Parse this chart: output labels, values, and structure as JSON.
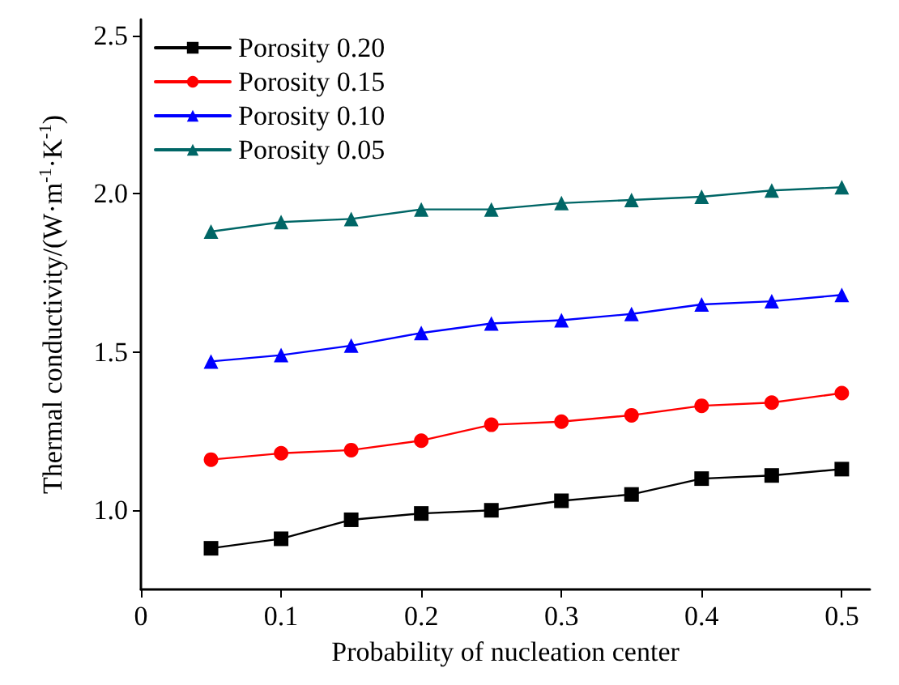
{
  "chart_data": {
    "type": "line",
    "xlabel": "Probability of nucleation center",
    "ylabel": "Thermal conductivity/(W·m$^{-1}$·K$^{-1}$)",
    "x": [
      0.05,
      0.1,
      0.15,
      0.2,
      0.25,
      0.3,
      0.35,
      0.4,
      0.45,
      0.5
    ],
    "series": [
      {
        "name": "Porosity 0.20",
        "color": "#000000",
        "marker": "square",
        "values": [
          0.88,
          0.91,
          0.97,
          0.99,
          1.0,
          1.03,
          1.05,
          1.1,
          1.11,
          1.13
        ]
      },
      {
        "name": "Porosity 0.15",
        "color": "#ff0000",
        "marker": "circle",
        "values": [
          1.16,
          1.18,
          1.19,
          1.22,
          1.27,
          1.28,
          1.3,
          1.33,
          1.34,
          1.37
        ]
      },
      {
        "name": "Porosity 0.10",
        "color": "#0000ff",
        "marker": "triangle",
        "values": [
          1.47,
          1.49,
          1.52,
          1.56,
          1.59,
          1.6,
          1.62,
          1.65,
          1.66,
          1.68
        ]
      },
      {
        "name": "Porosity 0.05",
        "color": "#006666",
        "marker": "triangle",
        "values": [
          1.88,
          1.91,
          1.92,
          1.95,
          1.95,
          1.97,
          1.98,
          1.99,
          2.01,
          2.02
        ]
      }
    ],
    "xlim": [
      0,
      0.52
    ],
    "xticks": [
      0,
      0.1,
      0.2,
      0.3,
      0.4,
      0.5
    ],
    "ylim": [
      0.75,
      2.55
    ],
    "yticks": [
      {
        "value": 1.0,
        "label": "1.0"
      },
      {
        "value": 1.5,
        "label": "1.5"
      },
      {
        "value": 2.0,
        "label": "2.0"
      },
      {
        "value": 2.5,
        "label": "2.5"
      }
    ],
    "legend": "top left",
    "grid": false,
    "line_style": "solid"
  }
}
